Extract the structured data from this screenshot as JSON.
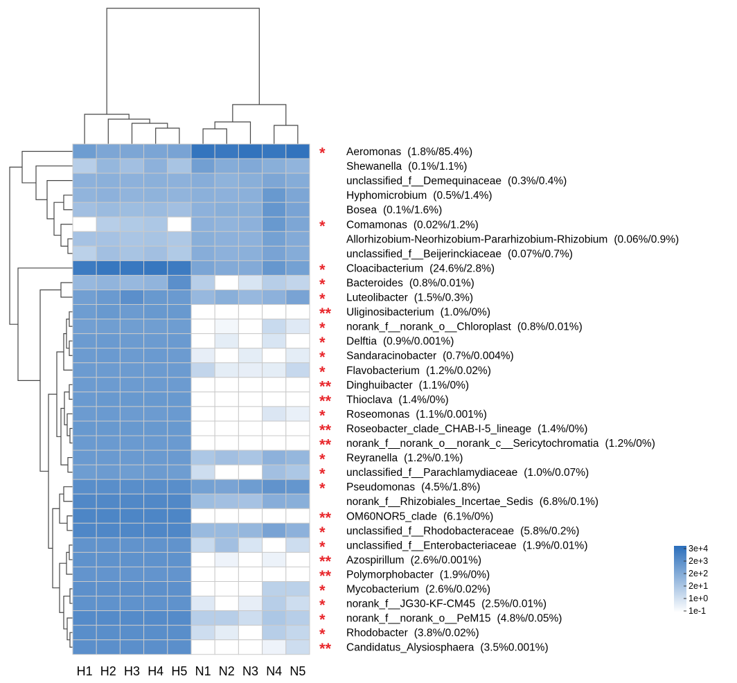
{
  "chart_data": {
    "type": "heatmap",
    "columns": [
      "H1",
      "H2",
      "H3",
      "H4",
      "H5",
      "N1",
      "N2",
      "N3",
      "N4",
      "N5"
    ],
    "rows": [
      {
        "taxon": "Aeromonas",
        "note": "(1.8%/85.4%)",
        "sig": "*",
        "values": [
          6.5,
          5.8,
          5.8,
          5.9,
          6.0,
          9.5,
          9.2,
          9.6,
          9.3,
          9.6
        ]
      },
      {
        "taxon": "Shewanella",
        "note": "(0.1%/1.1%)",
        "sig": "",
        "values": [
          3.0,
          4.6,
          4.0,
          5.0,
          3.7,
          6.3,
          5.4,
          5.6,
          5.2,
          4.8
        ]
      },
      {
        "taxon": "unclassified_f__Demequinaceae",
        "note": "(0.3%/0.4%)",
        "sig": "",
        "values": [
          5.0,
          5.1,
          5.0,
          5.1,
          5.0,
          5.3,
          4.9,
          5.2,
          5.8,
          5.4
        ]
      },
      {
        "taxon": "Hyphomicrobium",
        "note": "(0.5%/1.4%)",
        "sig": "",
        "values": [
          4.8,
          5.0,
          4.8,
          4.9,
          4.8,
          5.1,
          5.0,
          5.1,
          6.8,
          5.8
        ]
      },
      {
        "taxon": "Bosea",
        "note": "(0.1%/1.6%)",
        "sig": "",
        "values": [
          4.0,
          4.3,
          4.2,
          4.3,
          4.0,
          5.0,
          5.2,
          5.2,
          7.0,
          6.0
        ]
      },
      {
        "taxon": "Comamonas",
        "note": "(0.02%/1.2%)",
        "sig": "*",
        "values": [
          0.0,
          3.0,
          3.3,
          3.5,
          0.0,
          5.0,
          4.8,
          5.0,
          6.8,
          5.8
        ]
      },
      {
        "taxon": "Allorhizobium-Neorhizobium-Pararhizobium-Rhizobium",
        "note": "(0.06%/0.9%)",
        "sig": "",
        "values": [
          3.8,
          3.8,
          3.6,
          3.7,
          3.4,
          5.2,
          5.0,
          5.0,
          6.2,
          5.5
        ]
      },
      {
        "taxon": "unclassified_f__Beijerinckiaceae",
        "note": "(0.07%/0.7%)",
        "sig": "",
        "values": [
          2.8,
          4.0,
          3.7,
          4.0,
          3.3,
          5.3,
          5.0,
          5.1,
          6.0,
          5.4
        ]
      },
      {
        "taxon": "Cloacibacterium",
        "note": "(24.6%/2.8%)",
        "sig": "*",
        "values": [
          9.0,
          9.3,
          9.2,
          9.3,
          9.0,
          5.9,
          5.5,
          5.5,
          6.9,
          6.2
        ]
      },
      {
        "taxon": "Bacteroides",
        "note": "(0.8%/0.01%)",
        "sig": "*",
        "values": [
          4.5,
          4.8,
          4.5,
          4.8,
          7.5,
          3.0,
          0.0,
          1.5,
          3.0,
          2.5
        ]
      },
      {
        "taxon": "Luteolibacter",
        "note": "(1.5%/0.3%)",
        "sig": "*",
        "values": [
          6.3,
          6.7,
          7.5,
          6.8,
          6.7,
          4.5,
          5.2,
          4.5,
          5.0,
          6.0
        ]
      },
      {
        "taxon": "Uliginosibacterium",
        "note": "(1.0%/0%)",
        "sig": "**",
        "values": [
          6.5,
          6.8,
          6.6,
          6.8,
          6.8,
          0.0,
          0.0,
          0.0,
          0.0,
          0.0
        ]
      },
      {
        "taxon": "norank_f__norank_o__Chloroplast",
        "note": "(0.8%/0.01%)",
        "sig": "*",
        "values": [
          6.3,
          6.4,
          6.4,
          6.4,
          6.5,
          0.0,
          0.4,
          0.0,
          2.2,
          1.2
        ]
      },
      {
        "taxon": "Delftia",
        "note": "(0.9%/0.001%)",
        "sig": "*",
        "values": [
          6.6,
          6.7,
          6.6,
          6.6,
          6.7,
          0.0,
          1.0,
          0.0,
          1.5,
          0.0
        ]
      },
      {
        "taxon": "Sandaracinobacter",
        "note": "(0.7%/0.004%)",
        "sig": "*",
        "values": [
          6.6,
          6.7,
          6.6,
          6.7,
          6.6,
          0.9,
          0.0,
          1.0,
          0.0,
          1.0
        ]
      },
      {
        "taxon": "Flavobacterium",
        "note": "(1.2%/0.02%)",
        "sig": "*",
        "values": [
          6.6,
          6.6,
          6.6,
          6.6,
          6.6,
          2.5,
          1.0,
          0.9,
          1.0,
          2.3
        ]
      },
      {
        "taxon": "Dinghuibacter",
        "note": "(1.1%/0%)",
        "sig": "**",
        "values": [
          6.6,
          6.6,
          6.6,
          6.6,
          6.6,
          0.0,
          0.0,
          0.0,
          0.0,
          0.0
        ]
      },
      {
        "taxon": "Thioclava",
        "note": "(1.4%/0%)",
        "sig": "**",
        "values": [
          6.7,
          6.8,
          6.8,
          6.8,
          6.8,
          0.0,
          0.0,
          0.0,
          0.0,
          0.0
        ]
      },
      {
        "taxon": "Roseomonas",
        "note": "(1.1%/0.001%)",
        "sig": "*",
        "values": [
          6.6,
          6.7,
          6.6,
          6.6,
          6.7,
          0.0,
          0.0,
          0.0,
          1.4,
          0.8
        ]
      },
      {
        "taxon": "Roseobacter_clade_CHAB-I-5_lineage",
        "note": "(1.4%/0%)",
        "sig": "**",
        "values": [
          6.8,
          6.8,
          6.8,
          6.8,
          6.8,
          0.0,
          0.0,
          0.0,
          0.0,
          0.0
        ]
      },
      {
        "taxon": "norank_f__norank_o__norank_c__Sericytochromatia",
        "note": "(1.2%/0%)",
        "sig": "**",
        "values": [
          6.7,
          6.7,
          6.7,
          6.7,
          6.7,
          0.0,
          0.0,
          0.0,
          0.0,
          0.0
        ]
      },
      {
        "taxon": "Reyranella",
        "note": "(1.2%/0.1%)",
        "sig": "*",
        "values": [
          6.7,
          6.7,
          6.7,
          6.7,
          6.7,
          3.5,
          4.0,
          3.6,
          5.0,
          4.6
        ]
      },
      {
        "taxon": "unclassified_f__Parachlamydiaceae",
        "note": "(1.0%/0.07%)",
        "sig": "*",
        "values": [
          6.5,
          6.6,
          6.5,
          6.6,
          6.5,
          2.0,
          0.0,
          0.0,
          4.0,
          3.5
        ]
      },
      {
        "taxon": "Pseudomonas",
        "note": "(4.5%/1.8%)",
        "sig": "*",
        "values": [
          7.6,
          7.6,
          7.6,
          7.6,
          7.6,
          6.2,
          6.0,
          6.5,
          7.2,
          7.0
        ]
      },
      {
        "taxon": "norank_f__Rhizobiales_Incertae_Sedis",
        "note": "(6.8%/0.1%)",
        "sig": "",
        "values": [
          8.0,
          8.0,
          8.0,
          8.0,
          8.0,
          4.2,
          4.0,
          3.8,
          5.3,
          5.2
        ]
      },
      {
        "taxon": "OM60NOR5_clade",
        "note": "(6.1%/0%)",
        "sig": "**",
        "values": [
          8.2,
          8.2,
          8.2,
          8.2,
          8.2,
          0.0,
          0.0,
          0.0,
          0.0,
          0.0
        ]
      },
      {
        "taxon": "unclassified_f__Rhodobacteraceae",
        "note": "(5.8%/0.2%)",
        "sig": "*",
        "values": [
          8.1,
          8.1,
          8.1,
          8.1,
          8.1,
          4.4,
          4.4,
          4.6,
          6.0,
          5.0
        ]
      },
      {
        "taxon": "unclassified_f__Enterobacteriaceae",
        "note": "(1.9%/0.01%)",
        "sig": "*",
        "values": [
          7.2,
          7.2,
          7.2,
          7.2,
          7.2,
          2.2,
          4.0,
          1.5,
          0.0,
          2.0
        ]
      },
      {
        "taxon": "Azospirillum",
        "note": "(2.6%/0.001%)",
        "sig": "**",
        "values": [
          7.3,
          7.3,
          7.3,
          7.3,
          7.3,
          0.0,
          0.6,
          0.0,
          0.7,
          0.0
        ]
      },
      {
        "taxon": "Polymorphobacter",
        "note": "(1.9%/0%)",
        "sig": "**",
        "values": [
          7.1,
          7.1,
          7.1,
          7.1,
          7.1,
          0.0,
          0.0,
          0.0,
          0.0,
          0.0
        ]
      },
      {
        "taxon": "Mycobacterium",
        "note": "(2.6%/0.02%)",
        "sig": "*",
        "values": [
          7.4,
          7.4,
          7.4,
          7.4,
          7.4,
          0.0,
          0.0,
          0.0,
          2.8,
          2.8
        ]
      },
      {
        "taxon": "norank_f__JG30-KF-CM45",
        "note": "(2.5%/0.01%)",
        "sig": "*",
        "values": [
          7.3,
          7.3,
          7.3,
          7.3,
          7.3,
          1.2,
          0.0,
          0.9,
          3.0,
          2.0
        ]
      },
      {
        "taxon": "norank_f__norank_o__PeM15",
        "note": "(4.8%/0.05%)",
        "sig": "*",
        "values": [
          7.8,
          7.8,
          7.8,
          7.8,
          7.8,
          3.0,
          3.0,
          2.0,
          3.5,
          3.0
        ]
      },
      {
        "taxon": "Rhodobacter",
        "note": "(3.8%/0.02%)",
        "sig": "*",
        "values": [
          7.6,
          7.6,
          7.6,
          7.6,
          7.6,
          2.0,
          1.0,
          0.0,
          3.0,
          2.4
        ]
      },
      {
        "taxon": "Candidatus_Alysiosphaera",
        "note": "(3.5%0.001%)",
        "sig": "**",
        "values": [
          7.5,
          7.5,
          7.5,
          7.5,
          7.5,
          0.0,
          0.0,
          0.0,
          0.6,
          2.0
        ]
      }
    ],
    "color_scale": {
      "min_color": "#ffffff",
      "max_color": "#2a6ebb",
      "value_range": [
        0,
        10
      ],
      "tick_labels": [
        "3e+4",
        "2e+3",
        "2e+2",
        "2e+1",
        "1e+0",
        "1e-1"
      ]
    },
    "grid_color": "#c9c9c9",
    "significance_color": "#e8262b",
    "column_dendrogram": {
      "merges": [
        {
          "left": "H4",
          "right": "H5"
        },
        {
          "left": "H3",
          "right": "H4+H5"
        },
        {
          "left": "H2",
          "right": "H3+H4+H5"
        },
        {
          "left": "H1",
          "right": "H2+H3+H4+H5"
        },
        {
          "left": "N4",
          "right": "N5"
        },
        {
          "left": "N1",
          "right": "N2"
        },
        {
          "left": "N1+N2",
          "right": "N3"
        },
        {
          "left": "N1+N2+N3",
          "right": "N4+N5"
        },
        {
          "left": "H",
          "right": "N"
        }
      ]
    },
    "row_dendrogram": {
      "present": true
    }
  }
}
